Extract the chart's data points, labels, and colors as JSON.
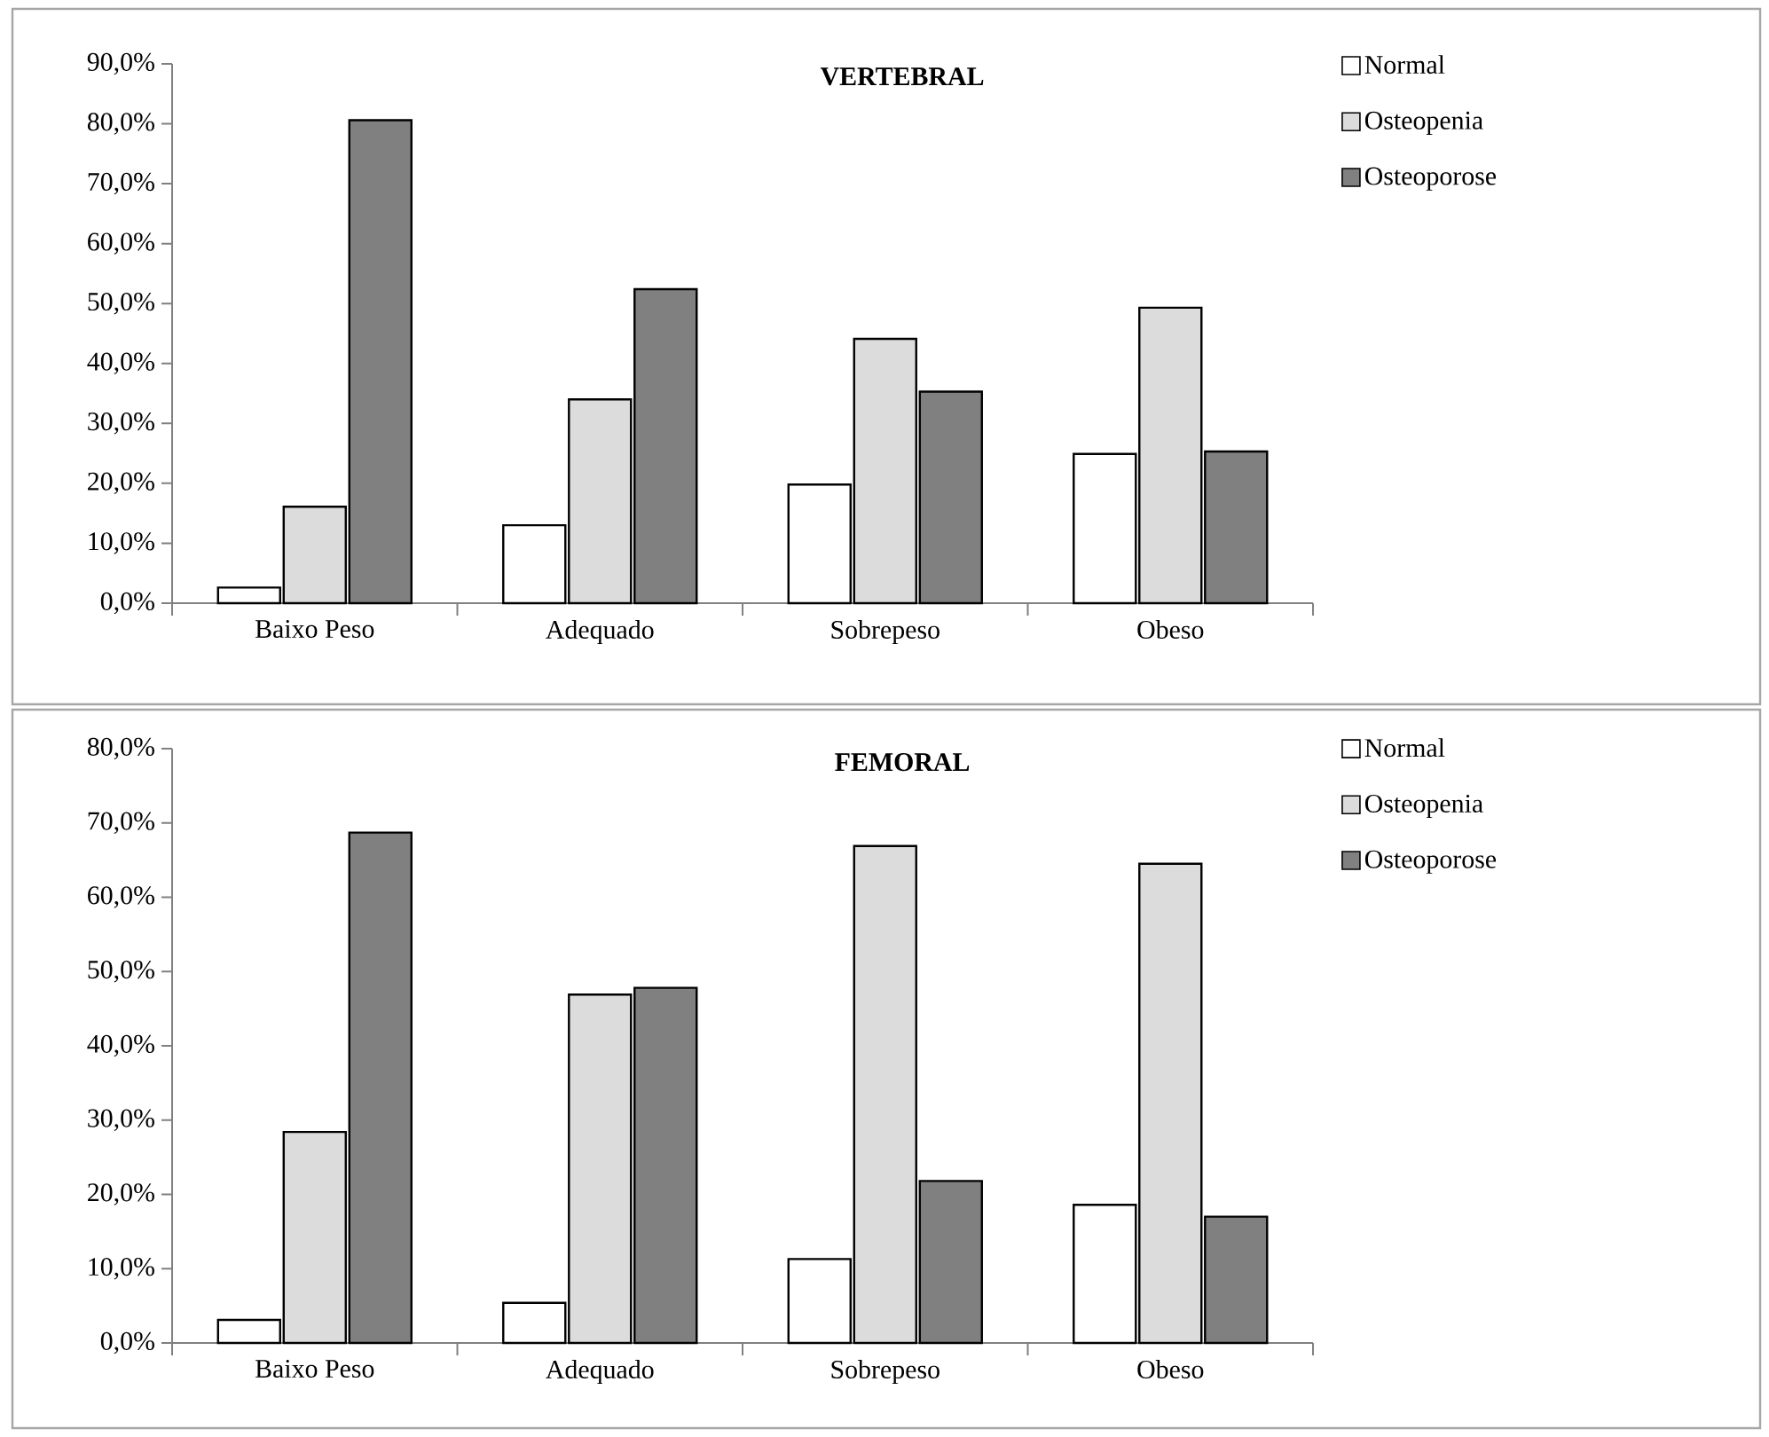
{
  "chart_data": [
    {
      "type": "bar",
      "title": "VERTEBRAL",
      "categories": [
        "Baixo Peso",
        "Adequado",
        "Sobrepeso",
        "Obeso"
      ],
      "series": [
        {
          "name": "Normal",
          "color": "#ffffff",
          "values": [
            2.6,
            13.0,
            19.8,
            24.9
          ]
        },
        {
          "name": "Osteopenia",
          "color": "#dcdcdc",
          "values": [
            16.1,
            34.0,
            44.1,
            49.3
          ]
        },
        {
          "name": "Osteoporose",
          "color": "#808080",
          "values": [
            80.6,
            52.4,
            35.3,
            25.3
          ]
        }
      ],
      "ylim": [
        0,
        90
      ],
      "yticks": [
        {
          "value": 0,
          "label": "0,0%"
        },
        {
          "value": 10,
          "label": "10,0%"
        },
        {
          "value": 20,
          "label": "20,0%"
        },
        {
          "value": 30,
          "label": "30,0%"
        },
        {
          "value": 40,
          "label": "40,0%"
        },
        {
          "value": 50,
          "label": "50,0%"
        },
        {
          "value": 60,
          "label": "60,0%"
        },
        {
          "value": 70,
          "label": "70,0%"
        },
        {
          "value": 80,
          "label": "80,0%"
        },
        {
          "value": 90,
          "label": "90,0%"
        }
      ],
      "legend": "top right"
    },
    {
      "type": "bar",
      "title": "FEMORAL",
      "categories": [
        "Baixo Peso",
        "Adequado",
        "Sobrepeso",
        "Obeso"
      ],
      "series": [
        {
          "name": "Normal",
          "color": "#ffffff",
          "values": [
            3.1,
            5.4,
            11.3,
            18.6
          ]
        },
        {
          "name": "Osteopenia",
          "color": "#dcdcdc",
          "values": [
            28.4,
            46.9,
            66.9,
            64.5
          ]
        },
        {
          "name": "Osteoporose",
          "color": "#808080",
          "values": [
            68.7,
            47.8,
            21.8,
            17.0
          ]
        }
      ],
      "ylim": [
        0,
        80
      ],
      "yticks": [
        {
          "value": 0,
          "label": "0,0%"
        },
        {
          "value": 10,
          "label": "10,0%"
        },
        {
          "value": 20,
          "label": "20,0%"
        },
        {
          "value": 30,
          "label": "30,0%"
        },
        {
          "value": 40,
          "label": "40,0%"
        },
        {
          "value": 50,
          "label": "50,0%"
        },
        {
          "value": 60,
          "label": "60,0%"
        },
        {
          "value": 70,
          "label": "70,0%"
        },
        {
          "value": 80,
          "label": "80,0%"
        }
      ],
      "legend": "top right"
    }
  ]
}
